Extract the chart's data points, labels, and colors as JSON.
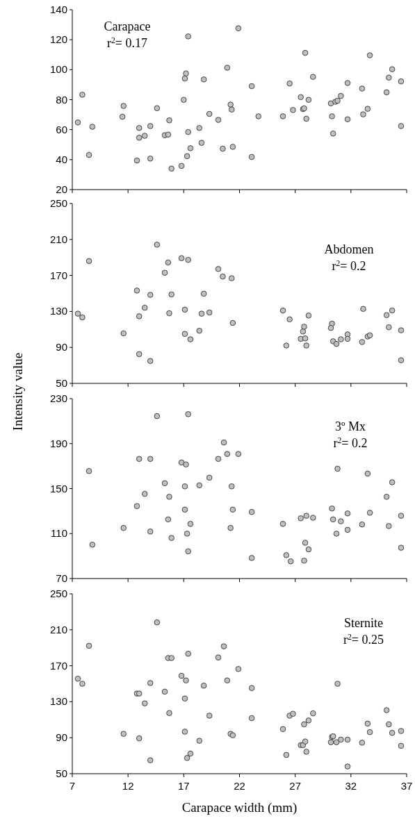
{
  "chart_data": [
    {
      "type": "scatter",
      "annotations": [
        "Carapace",
        "r$^{2}$= 0.17"
      ],
      "xlim": [
        7,
        37
      ],
      "xticks": [
        7,
        12,
        17,
        22,
        27,
        32,
        37
      ],
      "ylim": [
        20,
        140
      ],
      "yticks": [
        20,
        40,
        60,
        80,
        100,
        120,
        140
      ],
      "tick_labels": "y",
      "marker": "circle",
      "series": [
        {
          "color": "#c0c0c0",
          "x": [
            7.5,
            7.9,
            8.5,
            8.8,
            11.6,
            11.5,
            13.0,
            13.0,
            13.5,
            12.8,
            14.0,
            14.0,
            14.6,
            15.3,
            15.6,
            15.7,
            15.9,
            16.8,
            17.0,
            17.1,
            17.2,
            17.4,
            17.4,
            17.3,
            17.6,
            18.4,
            18.6,
            18.8,
            19.3,
            20.1,
            20.5,
            20.9,
            21.2,
            21.3,
            21.4,
            21.9,
            23.1,
            23.1,
            23.7,
            25.9,
            26.5,
            26.8,
            27.5,
            27.7,
            27.8,
            27.9,
            28.0,
            28.2,
            28.6,
            30.2,
            30.3,
            30.4,
            30.6,
            30.8,
            31.1,
            31.7,
            31.7,
            33.0,
            33.1,
            33.5,
            33.7,
            35.2,
            35.4,
            35.7,
            36.5,
            36.5
          ],
          "values": [
            64.8,
            83.3,
            43.1,
            61.9,
            75.8,
            68.6,
            61.1,
            54.6,
            55.9,
            39.4,
            62.4,
            40.7,
            74.3,
            56.3,
            56.7,
            66.2,
            34.0,
            35.8,
            79.9,
            94.1,
            97.5,
            122.2,
            58.4,
            42.3,
            47.6,
            61.1,
            51.2,
            93.5,
            70.5,
            66.5,
            47.3,
            101.3,
            76.7,
            73.4,
            48.5,
            127.6,
            89.0,
            41.8,
            68.9,
            68.9,
            90.8,
            73.1,
            81.7,
            73.7,
            74.2,
            111.2,
            67.3,
            79.9,
            95.2,
            77.5,
            68.9,
            57.4,
            78.6,
            79.3,
            82.5,
            91.1,
            66.9,
            87.4,
            70.2,
            73.9,
            109.6,
            84.9,
            94.7,
            100.3,
            92.2,
            62.4
          ]
        }
      ]
    },
    {
      "type": "scatter",
      "ylabel": "Intensity value",
      "annotations": [
        "Abdomen",
        "r$^{2}$= 0.2"
      ],
      "xlim": [
        7,
        37
      ],
      "xticks": [
        7,
        12,
        17,
        22,
        27,
        32,
        37
      ],
      "ylim": [
        50,
        250
      ],
      "yticks": [
        50,
        90,
        130,
        170,
        210,
        250
      ],
      "tick_labels": "y",
      "marker": "circle",
      "series": [
        {
          "color": "#c0c0c0",
          "x": [
            7.5,
            7.9,
            8.5,
            11.6,
            12.8,
            13.0,
            13.0,
            13.5,
            14.0,
            14.0,
            14.6,
            15.3,
            15.6,
            15.7,
            15.9,
            16.8,
            17.1,
            17.1,
            17.4,
            17.6,
            18.4,
            18.6,
            18.8,
            19.3,
            20.1,
            20.5,
            21.3,
            21.4,
            25.9,
            26.2,
            26.5,
            27.5,
            27.7,
            27.8,
            27.9,
            28.0,
            28.2,
            30.3,
            30.2,
            30.4,
            30.7,
            31.1,
            31.7,
            31.7,
            33.0,
            33.1,
            33.5,
            33.7,
            35.2,
            35.4,
            35.7,
            36.5,
            36.5
          ],
          "values": [
            127.5,
            123.3,
            186.0,
            105.6,
            153.2,
            124.6,
            82.5,
            134.1,
            148.4,
            74.9,
            204.2,
            173.0,
            184.4,
            128.0,
            148.9,
            189.2,
            132.0,
            105.0,
            187.3,
            99.0,
            108.5,
            127.5,
            149.7,
            128.8,
            177.2,
            168.8,
            166.9,
            117.2,
            131.0,
            92.1,
            121.2,
            99.5,
            107.7,
            113.0,
            100.0,
            92.1,
            125.4,
            116.4,
            111.6,
            96.8,
            93.9,
            99.0,
            104.5,
            99.5,
            96.0,
            132.8,
            102.1,
            103.4,
            125.9,
            112.4,
            131.0,
            109.0,
            75.7
          ]
        }
      ]
    },
    {
      "type": "scatter",
      "annotations": [
        "3º Mx",
        "r$^{2}$= 0.2"
      ],
      "xlim": [
        7,
        37
      ],
      "xticks": [
        7,
        12,
        17,
        22,
        27,
        32,
        37
      ],
      "ylim": [
        70,
        230
      ],
      "yticks": [
        70,
        110,
        150,
        190,
        230
      ],
      "tick_labels": "y",
      "marker": "circle",
      "series": [
        {
          "color": "#c0c0c0",
          "x": [
            8.5,
            8.8,
            11.6,
            12.8,
            13.0,
            13.5,
            14.0,
            14.0,
            14.6,
            15.3,
            15.6,
            15.7,
            15.9,
            16.8,
            17.2,
            17.1,
            17.1,
            17.3,
            17.4,
            17.4,
            17.6,
            18.4,
            19.3,
            20.1,
            20.6,
            20.9,
            21.3,
            21.4,
            21.2,
            21.9,
            23.1,
            23.1,
            25.9,
            26.2,
            26.6,
            27.5,
            27.8,
            27.9,
            28.0,
            28.2,
            28.6,
            30.3,
            30.4,
            30.8,
            30.7,
            31.1,
            31.7,
            31.7,
            33.0,
            33.5,
            33.7,
            35.2,
            35.4,
            35.7,
            36.5,
            36.5
          ],
          "values": [
            165.6,
            100.1,
            115.0,
            134.4,
            176.4,
            145.3,
            176.4,
            111.8,
            214.5,
            154.8,
            122.6,
            142.7,
            106.1,
            173.2,
            171.5,
            152.0,
            131.3,
            109.9,
            94.2,
            216.2,
            118.6,
            152.9,
            159.7,
            176.4,
            191.0,
            180.8,
            152.0,
            131.3,
            115.0,
            180.8,
            129.2,
            88.3,
            118.6,
            90.8,
            85.3,
            123.6,
            85.9,
            101.8,
            125.8,
            95.9,
            124.1,
            132.3,
            122.6,
            167.7,
            109.9,
            120.9,
            127.9,
            113.3,
            118.1,
            163.3,
            128.5,
            142.7,
            116.7,
            155.6,
            125.8,
            97.4
          ]
        }
      ]
    },
    {
      "type": "scatter",
      "xlabel": "Carapace width (mm)",
      "annotations": [
        "Sternite",
        "r$^{2}$= 0.25"
      ],
      "xlim": [
        7,
        37
      ],
      "xticks": [
        7,
        12,
        17,
        22,
        27,
        32,
        37
      ],
      "ylim": [
        50,
        250
      ],
      "yticks": [
        50,
        90,
        130,
        170,
        210,
        250
      ],
      "marker": "circle",
      "series": [
        {
          "color": "#c0c0c0",
          "x": [
            7.5,
            7.9,
            8.5,
            11.6,
            12.8,
            13.0,
            13.0,
            13.5,
            14.0,
            14.0,
            14.6,
            15.3,
            15.6,
            15.9,
            15.7,
            16.8,
            17.2,
            17.1,
            17.1,
            17.3,
            17.6,
            17.4,
            18.4,
            18.8,
            19.3,
            20.1,
            20.6,
            20.9,
            21.2,
            21.4,
            21.9,
            23.1,
            23.1,
            25.9,
            26.2,
            26.5,
            26.8,
            27.5,
            27.7,
            27.8,
            27.9,
            28.0,
            28.2,
            28.6,
            30.2,
            30.3,
            30.4,
            30.7,
            30.8,
            31.1,
            31.7,
            31.7,
            33.0,
            33.5,
            33.7,
            35.2,
            35.4,
            35.7,
            36.5,
            36.5
          ],
          "values": [
            155.6,
            150.0,
            192.2,
            94.3,
            139.1,
            139.1,
            89.3,
            128.2,
            150.8,
            64.9,
            218.2,
            141.2,
            178.6,
            178.6,
            117.4,
            158.8,
            153.7,
            133.6,
            96.7,
            67.5,
            72.3,
            183.4,
            86.6,
            147.9,
            114.5,
            179.2,
            191.6,
            153.7,
            94.3,
            92.7,
            166.4,
            145.2,
            111.8,
            99.6,
            70.9,
            114.5,
            116.6,
            81.8,
            81.8,
            104.9,
            85.8,
            74.4,
            109.2,
            117.1,
            85.0,
            90.8,
            91.6,
            85.0,
            150.0,
            87.9,
            87.9,
            58.0,
            84.5,
            105.7,
            96.2,
            120.6,
            104.9,
            95.4,
            97.5,
            81.0
          ]
        }
      ]
    }
  ]
}
